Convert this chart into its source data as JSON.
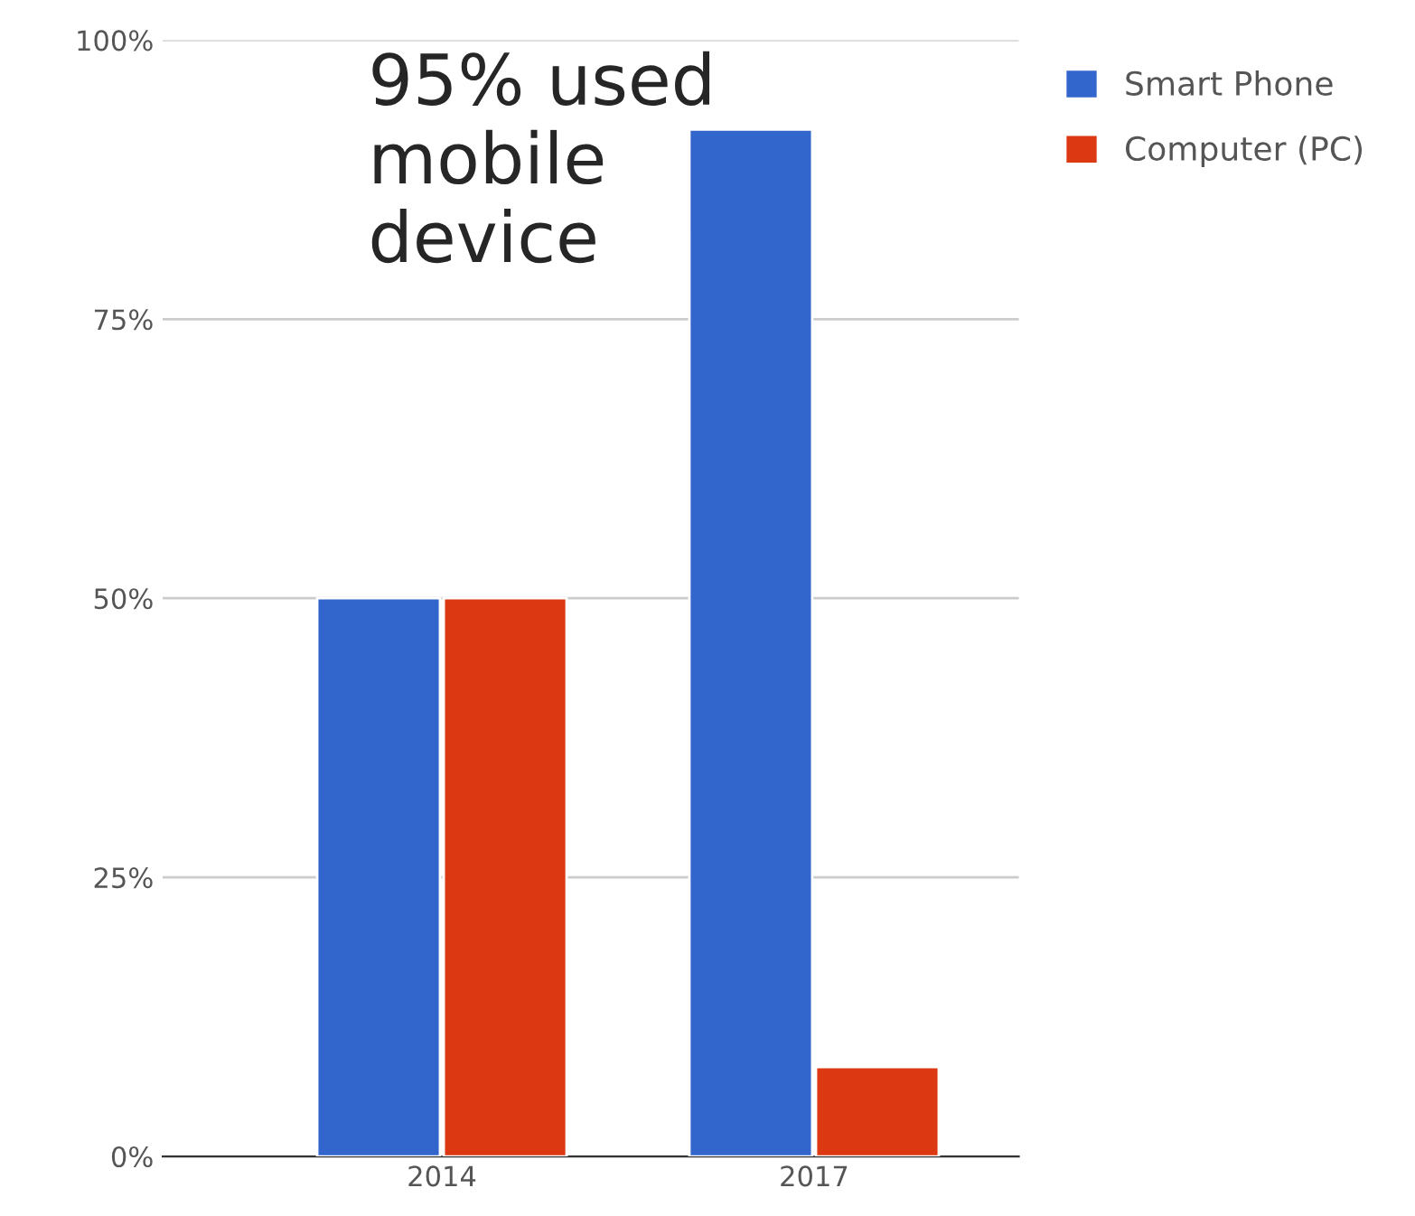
{
  "chart_data": {
    "type": "bar",
    "categories": [
      "2014",
      "2017"
    ],
    "series": [
      {
        "name": "Smart Phone",
        "color": "#3366cc",
        "values": [
          50,
          92
        ]
      },
      {
        "name": "Computer (PC)",
        "color": "#dc3912",
        "values": [
          50,
          8
        ]
      }
    ],
    "ylim": [
      0,
      100
    ],
    "yticks": [
      {
        "value": 0,
        "label": "0%"
      },
      {
        "value": 25,
        "label": "25%"
      },
      {
        "value": 50,
        "label": "50%"
      },
      {
        "value": 75,
        "label": "75%"
      },
      {
        "value": 100,
        "label": "100%"
      }
    ],
    "annotations": [
      "95% used\nmobile\ndevice"
    ],
    "grid": "y",
    "legend": "top right"
  }
}
